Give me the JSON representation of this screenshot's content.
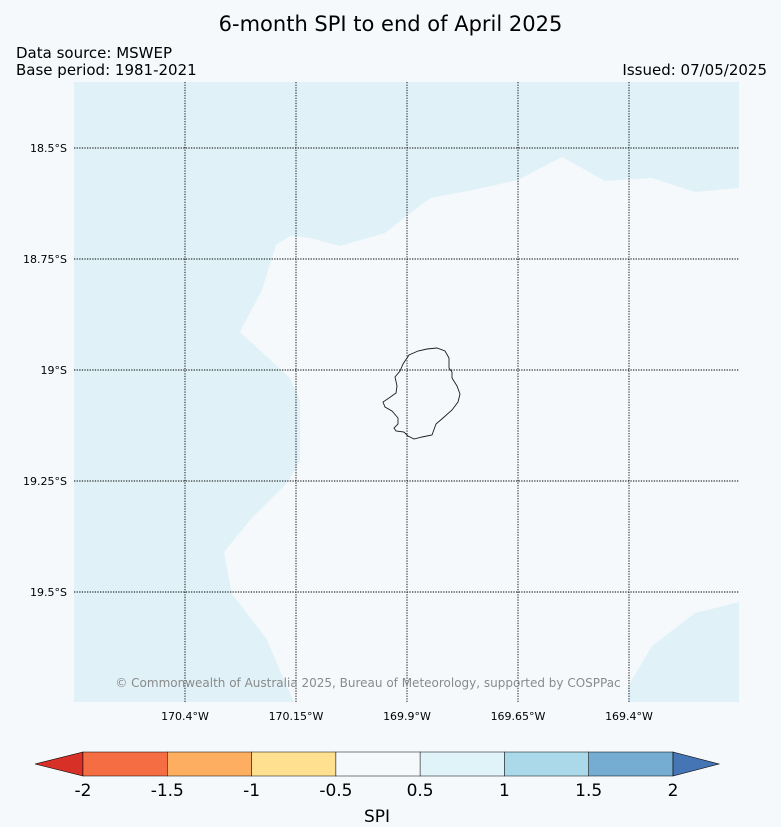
{
  "header": {
    "title": "6-month SPI to end of April 2025",
    "data_source": "Data source: MSWEP",
    "base_period": "Base period: 1981-2021",
    "issued": "Issued: 07/05/2025"
  },
  "map": {
    "lat_labels": [
      "18.5°S",
      "18.75°S",
      "19°S",
      "19.25°S",
      "19.5°S"
    ],
    "lon_labels": [
      "170.4°W",
      "170.15°W",
      "169.9°W",
      "169.65°W",
      "169.4°W"
    ],
    "copyright": "© Commonwealth of Australia 2025, Bureau of Meteorology, supported by COSPPac",
    "island_outline_color": "#1a1a1a",
    "colors": {
      "background": "#f5f9fc",
      "map_neutral": "#f5f9fc",
      "wet_0_5_to_1": "#e0f2f8"
    }
  },
  "colorbar": {
    "label": "SPI",
    "ticks": [
      "-2",
      "-1.5",
      "-1",
      "-0.5",
      "0.5",
      "1",
      "1.5",
      "2"
    ],
    "under_color": "#d73027",
    "over_color": "#4575b4",
    "bins": [
      {
        "from": -2,
        "to": -1.5,
        "color": "#f46d43"
      },
      {
        "from": -1.5,
        "to": -1,
        "color": "#fdae61"
      },
      {
        "from": -1,
        "to": -0.5,
        "color": "#fee090"
      },
      {
        "from": -0.5,
        "to": 0.5,
        "color": "#f5f9fc"
      },
      {
        "from": 0.5,
        "to": 1,
        "color": "#e0f3f8"
      },
      {
        "from": 1,
        "to": 1.5,
        "color": "#abd9e9"
      },
      {
        "from": 1.5,
        "to": 2,
        "color": "#74add1"
      }
    ]
  }
}
